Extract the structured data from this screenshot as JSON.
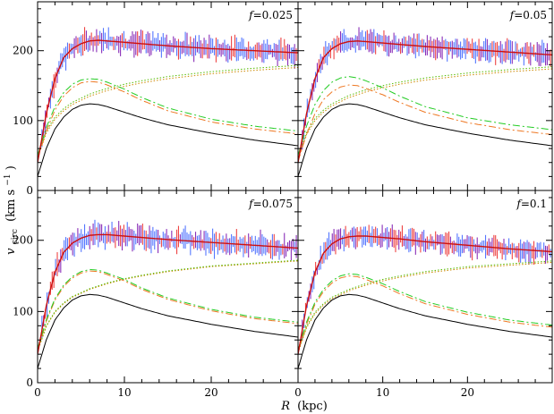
{
  "chart_data": {
    "type": "line",
    "xlabel": "R (kpc)",
    "xlabel_parts": {
      "symbol": "R",
      "unit": "(kpc)"
    },
    "ylabel": "v_circ (km s^-1)",
    "ylabel_parts": {
      "symbol": "v",
      "sub": "circ",
      "unit_pre": "(km s",
      "unit_exp": "−1",
      "unit_post": ")"
    },
    "xlim": [
      0,
      30
    ],
    "ylim": [
      0,
      270
    ],
    "x_ticks": [
      "0",
      "10",
      "20"
    ],
    "y_ticks": [
      "0",
      "100",
      "200"
    ],
    "layout": "2x2 grid, shared axes",
    "colors": {
      "total_model": "#cc1010",
      "data_blue": "#5577ff",
      "data_purple": "#8a2fb8",
      "data_red": "#ee4444",
      "disk_green": "#22cc22",
      "disk_orange": "#ee7722",
      "halo_green": "#55bb00",
      "halo_orange": "#cc8800",
      "bulge": "#000000"
    },
    "panels": [
      {
        "label_prefix": "f",
        "label_value": "=0.025",
        "total": {
          "x": [
            0,
            1,
            2,
            3,
            4,
            5,
            6,
            7,
            8,
            9,
            10,
            12,
            15,
            20,
            25,
            30
          ],
          "y": [
            40,
            110,
            160,
            190,
            203,
            210,
            214,
            215,
            214,
            213,
            212,
            210,
            207,
            203,
            200,
            197
          ]
        },
        "disk_green": {
          "x": [
            0,
            1,
            2,
            3,
            4,
            5,
            6,
            7,
            8,
            10,
            12,
            15,
            20,
            25,
            30
          ],
          "y": [
            50,
            90,
            120,
            140,
            152,
            158,
            160,
            159,
            155,
            145,
            133,
            118,
            102,
            92,
            85
          ]
        },
        "disk_orange": {
          "x": [
            0,
            1,
            2,
            3,
            4,
            5,
            6,
            7,
            8,
            10,
            12,
            15,
            20,
            25,
            30
          ],
          "y": [
            45,
            85,
            115,
            135,
            147,
            154,
            156,
            155,
            151,
            141,
            129,
            114,
            98,
            88,
            81
          ]
        },
        "halo_green": {
          "x": [
            0,
            1,
            2,
            3,
            4,
            6,
            8,
            10,
            12,
            15,
            20,
            25,
            30
          ],
          "y": [
            50,
            85,
            105,
            117,
            126,
            138,
            146,
            152,
            157,
            163,
            170,
            175,
            179
          ]
        },
        "halo_orange": {
          "x": [
            0,
            1,
            2,
            3,
            4,
            6,
            8,
            10,
            12,
            15,
            20,
            25,
            30
          ],
          "y": [
            47,
            82,
            102,
            114,
            123,
            135,
            143,
            149,
            154,
            160,
            167,
            172,
            176
          ]
        },
        "bulge": {
          "x": [
            0,
            1,
            2,
            3,
            4,
            5,
            6,
            7,
            8,
            10,
            12,
            15,
            20,
            25,
            30
          ],
          "y": [
            20,
            60,
            88,
            105,
            116,
            122,
            124,
            123,
            120,
            112,
            104,
            94,
            82,
            72,
            64
          ]
        },
        "data_noise": 12
      },
      {
        "label_prefix": "f",
        "label_value": "=0.05",
        "total": {
          "x": [
            0,
            1,
            2,
            3,
            4,
            5,
            6,
            7,
            8,
            9,
            10,
            12,
            15,
            20,
            25,
            30
          ],
          "y": [
            40,
            110,
            160,
            190,
            203,
            210,
            213,
            214,
            213,
            212,
            211,
            209,
            206,
            202,
            198,
            194
          ]
        },
        "disk_green": {
          "x": [
            0,
            1,
            2,
            3,
            4,
            5,
            6,
            7,
            8,
            10,
            12,
            15,
            20,
            25,
            30
          ],
          "y": [
            50,
            92,
            123,
            143,
            155,
            161,
            163,
            161,
            157,
            147,
            135,
            120,
            104,
            94,
            87
          ]
        },
        "disk_orange": {
          "x": [
            0,
            1,
            2,
            3,
            4,
            5,
            6,
            7,
            8,
            10,
            12,
            15,
            20,
            25,
            30
          ],
          "y": [
            42,
            80,
            110,
            130,
            141,
            148,
            151,
            150,
            146,
            137,
            126,
            112,
            97,
            87,
            80
          ]
        },
        "halo_green": {
          "x": [
            0,
            1,
            2,
            3,
            4,
            6,
            8,
            10,
            12,
            15,
            20,
            25,
            30
          ],
          "y": [
            48,
            83,
            103,
            115,
            124,
            136,
            144,
            150,
            155,
            161,
            168,
            173,
            177
          ]
        },
        "halo_orange": {
          "x": [
            0,
            1,
            2,
            3,
            4,
            6,
            8,
            10,
            12,
            15,
            20,
            25,
            30
          ],
          "y": [
            45,
            80,
            100,
            112,
            121,
            133,
            141,
            147,
            152,
            158,
            165,
            170,
            174
          ]
        },
        "bulge": {
          "x": [
            0,
            1,
            2,
            3,
            4,
            5,
            6,
            7,
            8,
            10,
            12,
            15,
            20,
            25,
            30
          ],
          "y": [
            20,
            60,
            88,
            105,
            116,
            122,
            124,
            123,
            120,
            112,
            104,
            94,
            82,
            72,
            64
          ]
        },
        "data_noise": 11
      },
      {
        "label_prefix": "f",
        "label_value": "=0.075",
        "total": {
          "x": [
            0,
            1,
            2,
            3,
            4,
            5,
            6,
            7,
            8,
            9,
            10,
            12,
            15,
            20,
            25,
            30
          ],
          "y": [
            40,
            108,
            155,
            183,
            196,
            203,
            207,
            208,
            208,
            207,
            206,
            204,
            201,
            197,
            193,
            189
          ]
        },
        "disk_green": {
          "x": [
            0,
            1,
            2,
            3,
            4,
            5,
            6,
            7,
            8,
            10,
            12,
            15,
            20,
            25,
            30
          ],
          "y": [
            48,
            88,
            118,
            137,
            149,
            156,
            159,
            158,
            154,
            145,
            133,
            119,
            103,
            92,
            85
          ]
        },
        "disk_orange": {
          "x": [
            0,
            1,
            2,
            3,
            4,
            5,
            6,
            7,
            8,
            10,
            12,
            15,
            20,
            25,
            30
          ],
          "y": [
            46,
            86,
            116,
            135,
            147,
            154,
            157,
            156,
            152,
            143,
            131,
            117,
            101,
            90,
            83
          ]
        },
        "halo_green": {
          "x": [
            0,
            1,
            2,
            3,
            4,
            6,
            8,
            10,
            12,
            15,
            20,
            25,
            30
          ],
          "y": [
            45,
            80,
            100,
            112,
            121,
            132,
            140,
            146,
            151,
            157,
            164,
            168,
            172
          ]
        },
        "halo_orange": {
          "x": [
            0,
            1,
            2,
            3,
            4,
            6,
            8,
            10,
            12,
            15,
            20,
            25,
            30
          ],
          "y": [
            44,
            79,
            99,
            111,
            120,
            131,
            139,
            145,
            150,
            156,
            163,
            167,
            171
          ]
        },
        "bulge": {
          "x": [
            0,
            1,
            2,
            3,
            4,
            5,
            6,
            7,
            8,
            10,
            12,
            15,
            20,
            25,
            30
          ],
          "y": [
            20,
            60,
            88,
            105,
            116,
            122,
            124,
            123,
            120,
            112,
            104,
            94,
            82,
            72,
            64
          ]
        },
        "data_noise": 12
      },
      {
        "label_prefix": "f",
        "label_value": "=0.1",
        "total": {
          "x": [
            0,
            1,
            2,
            3,
            4,
            5,
            6,
            7,
            8,
            9,
            10,
            12,
            15,
            20,
            25,
            30
          ],
          "y": [
            40,
            108,
            155,
            182,
            195,
            202,
            205,
            206,
            206,
            205,
            204,
            202,
            198,
            193,
            188,
            184
          ]
        },
        "disk_green": {
          "x": [
            0,
            1,
            2,
            3,
            4,
            5,
            6,
            7,
            8,
            10,
            12,
            15,
            20,
            25,
            30
          ],
          "y": [
            46,
            85,
            113,
            131,
            143,
            150,
            153,
            152,
            148,
            139,
            128,
            114,
            99,
            88,
            81
          ]
        },
        "disk_orange": {
          "x": [
            0,
            1,
            2,
            3,
            4,
            5,
            6,
            7,
            8,
            10,
            12,
            15,
            20,
            25,
            30
          ],
          "y": [
            44,
            82,
            110,
            128,
            140,
            147,
            150,
            149,
            145,
            136,
            125,
            111,
            96,
            85,
            78
          ]
        },
        "halo_green": {
          "x": [
            0,
            1,
            2,
            3,
            4,
            6,
            8,
            10,
            12,
            15,
            20,
            25,
            30
          ],
          "y": [
            44,
            79,
            99,
            111,
            120,
            131,
            139,
            145,
            150,
            156,
            163,
            167,
            171
          ]
        },
        "halo_orange": {
          "x": [
            0,
            1,
            2,
            3,
            4,
            6,
            8,
            10,
            12,
            15,
            20,
            25,
            30
          ],
          "y": [
            42,
            77,
            97,
            109,
            118,
            129,
            137,
            143,
            148,
            154,
            161,
            165,
            169
          ]
        },
        "bulge": {
          "x": [
            0,
            1,
            2,
            3,
            4,
            5,
            6,
            7,
            8,
            10,
            12,
            15,
            20,
            25,
            30
          ],
          "y": [
            20,
            60,
            88,
            105,
            116,
            122,
            124,
            123,
            120,
            112,
            104,
            94,
            82,
            72,
            64
          ]
        },
        "data_noise": 11
      }
    ]
  }
}
